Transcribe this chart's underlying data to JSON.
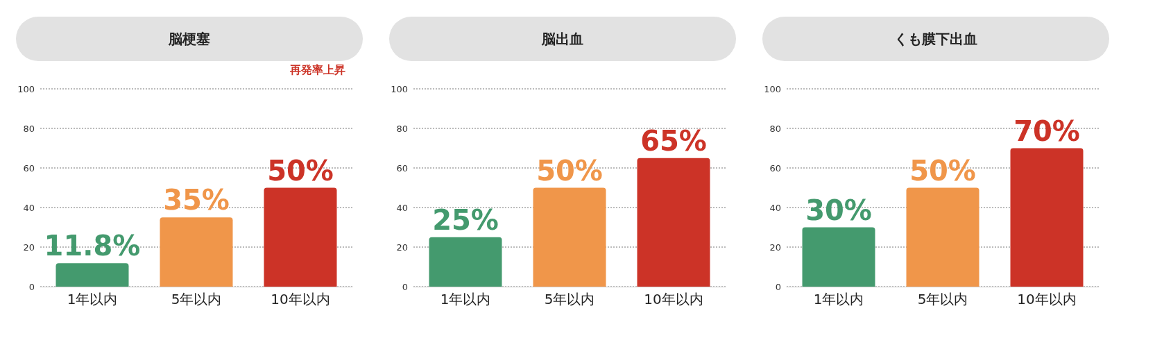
{
  "chart_data": [
    {
      "type": "bar",
      "title": "脳梗塞",
      "categories": [
        "1年以内",
        "5年以内",
        "10年以内"
      ],
      "values": [
        11.8,
        35,
        50
      ],
      "value_labels": [
        "11.8%",
        "35%",
        "50%"
      ],
      "colors": [
        "#449a6e",
        "#f0964a",
        "#cc3327"
      ],
      "ylim": [
        0,
        100
      ],
      "yticks": [
        0,
        20,
        40,
        60,
        80,
        100
      ],
      "grid": "y",
      "annotations": [
        "再発率上昇"
      ]
    },
    {
      "type": "bar",
      "title": "脳出血",
      "categories": [
        "1年以内",
        "5年以内",
        "10年以内"
      ],
      "values": [
        25,
        50,
        65
      ],
      "value_labels": [
        "25%",
        "50%",
        "65%"
      ],
      "colors": [
        "#449a6e",
        "#f0964a",
        "#cc3327"
      ],
      "ylim": [
        0,
        100
      ],
      "yticks": [
        0,
        20,
        40,
        60,
        80,
        100
      ],
      "grid": "y"
    },
    {
      "type": "bar",
      "title": "くも膜下出血",
      "categories": [
        "1年以内",
        "5年以内",
        "10年以内"
      ],
      "values": [
        30,
        50,
        70
      ],
      "value_labels": [
        "30%",
        "50%",
        "70%"
      ],
      "colors": [
        "#449a6e",
        "#f0964a",
        "#cc3327"
      ],
      "ylim": [
        0,
        100
      ],
      "yticks": [
        0,
        20,
        40,
        60,
        80,
        100
      ],
      "grid": "y"
    }
  ]
}
